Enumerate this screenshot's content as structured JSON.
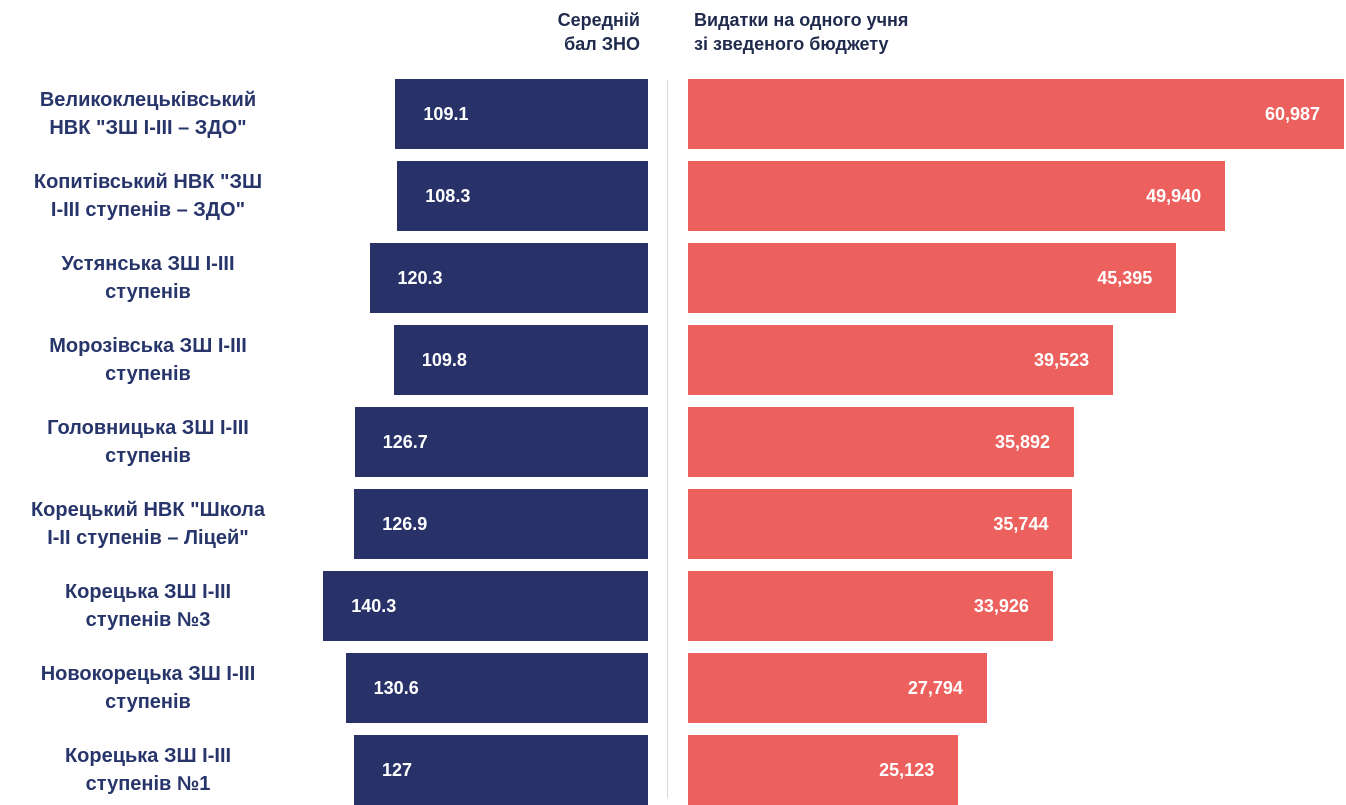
{
  "chart_data": {
    "type": "bar",
    "headers": {
      "left": "Середній\nбал ЗНО",
      "right": "Видатки на одного учня\nзі зведеного бюджету"
    },
    "categories": [
      "Великоклецьківський\nНВК \"ЗШ I-III – ЗДО\"",
      "Копитівський НВК \"ЗШ\nI-III ступенів – ЗДО\"",
      "Устянська ЗШ I-III\nступенів",
      "Морозівська ЗШ I-III\nступенів",
      "Головницька ЗШ I-III\nступенів",
      "Корецький НВК \"Школа\nI-II ступенів – Ліцей\"",
      "Корецька ЗШ I-III\nступенів №3",
      "Новокорецька ЗШ I-III\nступенів",
      "Корецька ЗШ I-III\nступенів №1"
    ],
    "series": [
      {
        "key": "zno",
        "color": "#283269",
        "values": [
          109.1,
          108.3,
          120.3,
          109.8,
          126.7,
          126.9,
          140.3,
          130.6,
          127
        ],
        "labels": [
          "109.1",
          "108.3",
          "120.3",
          "109.8",
          "126.7",
          "126.9",
          "140.3",
          "130.6",
          "127"
        ]
      },
      {
        "key": "expenses",
        "color": "#ec605d",
        "values": [
          60987,
          49940,
          45395,
          39523,
          35892,
          35744,
          33926,
          27794,
          25123
        ],
        "labels": [
          "60,987",
          "49,940",
          "45,395",
          "39,523",
          "35,892",
          "35,744",
          "33,926",
          "27,794",
          "25,123"
        ]
      }
    ]
  }
}
